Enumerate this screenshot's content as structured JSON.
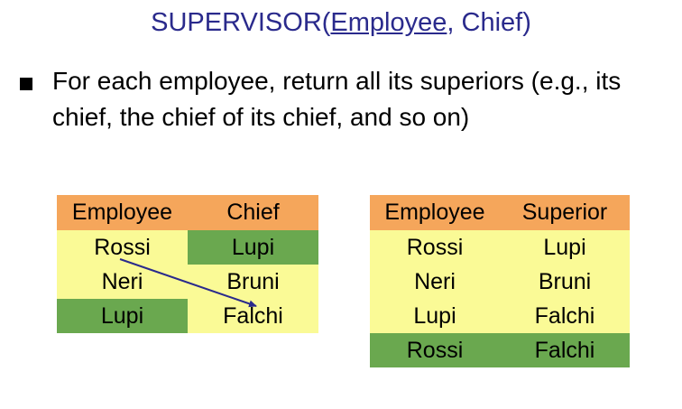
{
  "title": {
    "prefix": "SUPERVISOR(",
    "key_attribute": "Employee",
    "suffix": ", Chief)"
  },
  "bullet": {
    "text": "For each employee, return all its superiors (e.g., its chief, the chief of its chief, and so on)"
  },
  "left_table": {
    "headers": [
      "Employee",
      "Chief"
    ],
    "rows": [
      [
        "Rossi",
        "Lupi"
      ],
      [
        "Neri",
        "Bruni"
      ],
      [
        "Lupi",
        "Falchi"
      ]
    ]
  },
  "right_table": {
    "headers": [
      "Employee",
      "Superior"
    ],
    "rows": [
      [
        "Rossi",
        "Lupi"
      ],
      [
        "Neri",
        "Bruni"
      ],
      [
        "Lupi",
        "Falchi"
      ],
      [
        "Rossi",
        "Falchi"
      ]
    ]
  },
  "colors": {
    "title": "#2a2a8c",
    "header_fill": "#f5a65b",
    "row_fill": "#fafa96",
    "highlight_fill": "#6aa84f",
    "arrow": "#2a2a8c"
  }
}
